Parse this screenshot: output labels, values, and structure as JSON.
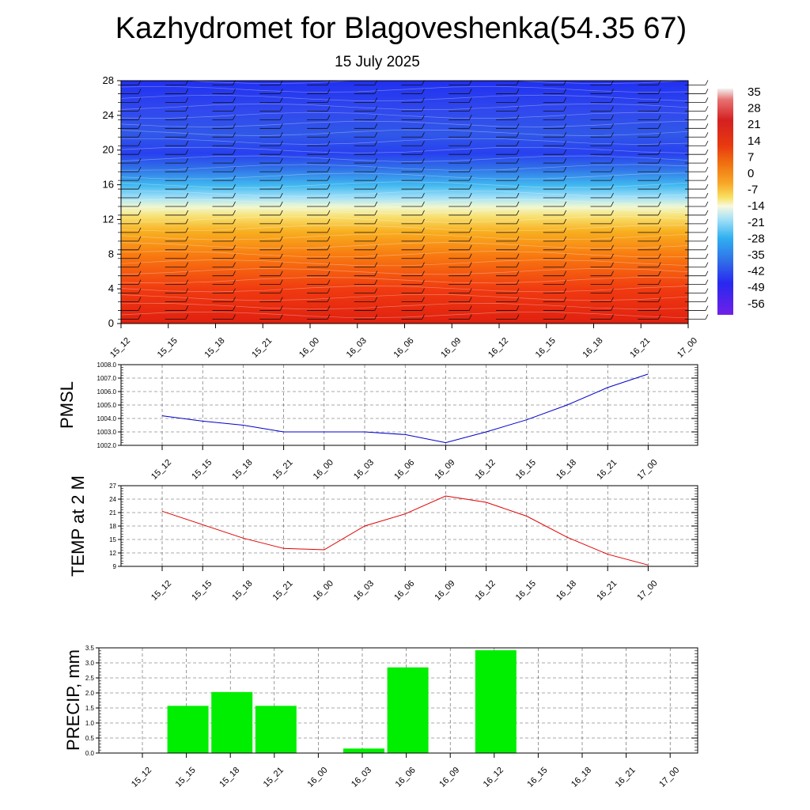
{
  "title": "Kazhydromet for Blagoveshenka(54.35 67)",
  "subtitle": "15 July 2025",
  "time_labels": [
    "15_12",
    "15_15",
    "15_18",
    "15_21",
    "16_00",
    "16_03",
    "16_06",
    "16_09",
    "16_12",
    "16_15",
    "16_18",
    "16_21",
    "17_00"
  ],
  "colorbar": {
    "labels": [
      "35",
      "28",
      "21",
      "14",
      "7",
      "0",
      "-7",
      "-14",
      "-21",
      "-28",
      "-35",
      "-42",
      "-49",
      "-56"
    ],
    "colors": [
      "#f2f2f2",
      "#e87070",
      "#d42020",
      "#e03010",
      "#f06a10",
      "#f8a020",
      "#f8d040",
      "#f8f0a0",
      "#b0e0f0",
      "#30b0f0",
      "#3070e8",
      "#3050e8",
      "#2020f0",
      "#7020e8"
    ]
  },
  "chart_data": [
    {
      "type": "heatmap",
      "title": "Kazhydromet for Blagoveshenka(54.35 67)",
      "subtitle": "15 July 2025",
      "x": [
        "15_12",
        "15_15",
        "15_18",
        "15_21",
        "16_00",
        "16_03",
        "16_06",
        "16_09",
        "16_12",
        "16_15",
        "16_18",
        "16_21",
        "17_00"
      ],
      "yticks": [
        "0",
        "4",
        "8",
        "12",
        "16",
        "20",
        "24",
        "28"
      ],
      "ylim": [
        0,
        28
      ],
      "levels": [
        0,
        4,
        8,
        12,
        16,
        20,
        24,
        28
      ],
      "values_by_level": [
        20,
        17,
        12,
        5,
        -25,
        -50,
        -52,
        -49
      ],
      "wind_barbs": true
    },
    {
      "type": "line",
      "ylabel": "PMSL",
      "x": [
        "15_12",
        "15_15",
        "15_18",
        "15_21",
        "16_00",
        "16_03",
        "16_06",
        "16_09",
        "16_12",
        "16_15",
        "16_18",
        "16_21",
        "17_00"
      ],
      "values": [
        1004.2,
        1003.8,
        1003.5,
        1003.0,
        1003.0,
        1003.0,
        1002.8,
        1002.2,
        1003.0,
        1003.9,
        1005.0,
        1006.3,
        1007.3
      ],
      "ylim": [
        1002.0,
        1008.0
      ],
      "yticks": [
        "1002.0",
        "1003.0",
        "1004.0",
        "1005.0",
        "1006.0",
        "1007.0",
        "1008.0"
      ],
      "color": "#0000cc"
    },
    {
      "type": "line",
      "ylabel": "TEMP at 2 M",
      "x": [
        "15_12",
        "15_15",
        "15_18",
        "15_21",
        "16_00",
        "16_03",
        "16_06",
        "16_09",
        "16_12",
        "16_15",
        "16_18",
        "16_21",
        "17_00"
      ],
      "values": [
        21.3,
        18.3,
        15.3,
        13.0,
        12.7,
        18.0,
        20.7,
        24.7,
        23.3,
        20.2,
        15.5,
        11.7,
        9.3
      ],
      "ylim": [
        9,
        27
      ],
      "yticks": [
        "9",
        "12",
        "15",
        "18",
        "21",
        "24",
        "27"
      ],
      "color": "#e00000"
    },
    {
      "type": "bar",
      "ylabel": "PRECIP, mm",
      "x": [
        "15_12",
        "15_15",
        "15_18",
        "15_21",
        "16_00",
        "16_03",
        "16_06",
        "16_09",
        "16_12",
        "16_15",
        "16_18",
        "16_21",
        "17_00"
      ],
      "values": [
        0,
        1.57,
        2.03,
        1.57,
        0,
        0.15,
        2.85,
        0,
        3.42,
        0,
        0,
        0,
        0
      ],
      "ylim": [
        0,
        3.5
      ],
      "yticks": [
        "0.0",
        "0.5",
        "1.0",
        "1.5",
        "2.0",
        "2.5",
        "3.0",
        "3.5"
      ],
      "color": "#00ee00"
    }
  ]
}
